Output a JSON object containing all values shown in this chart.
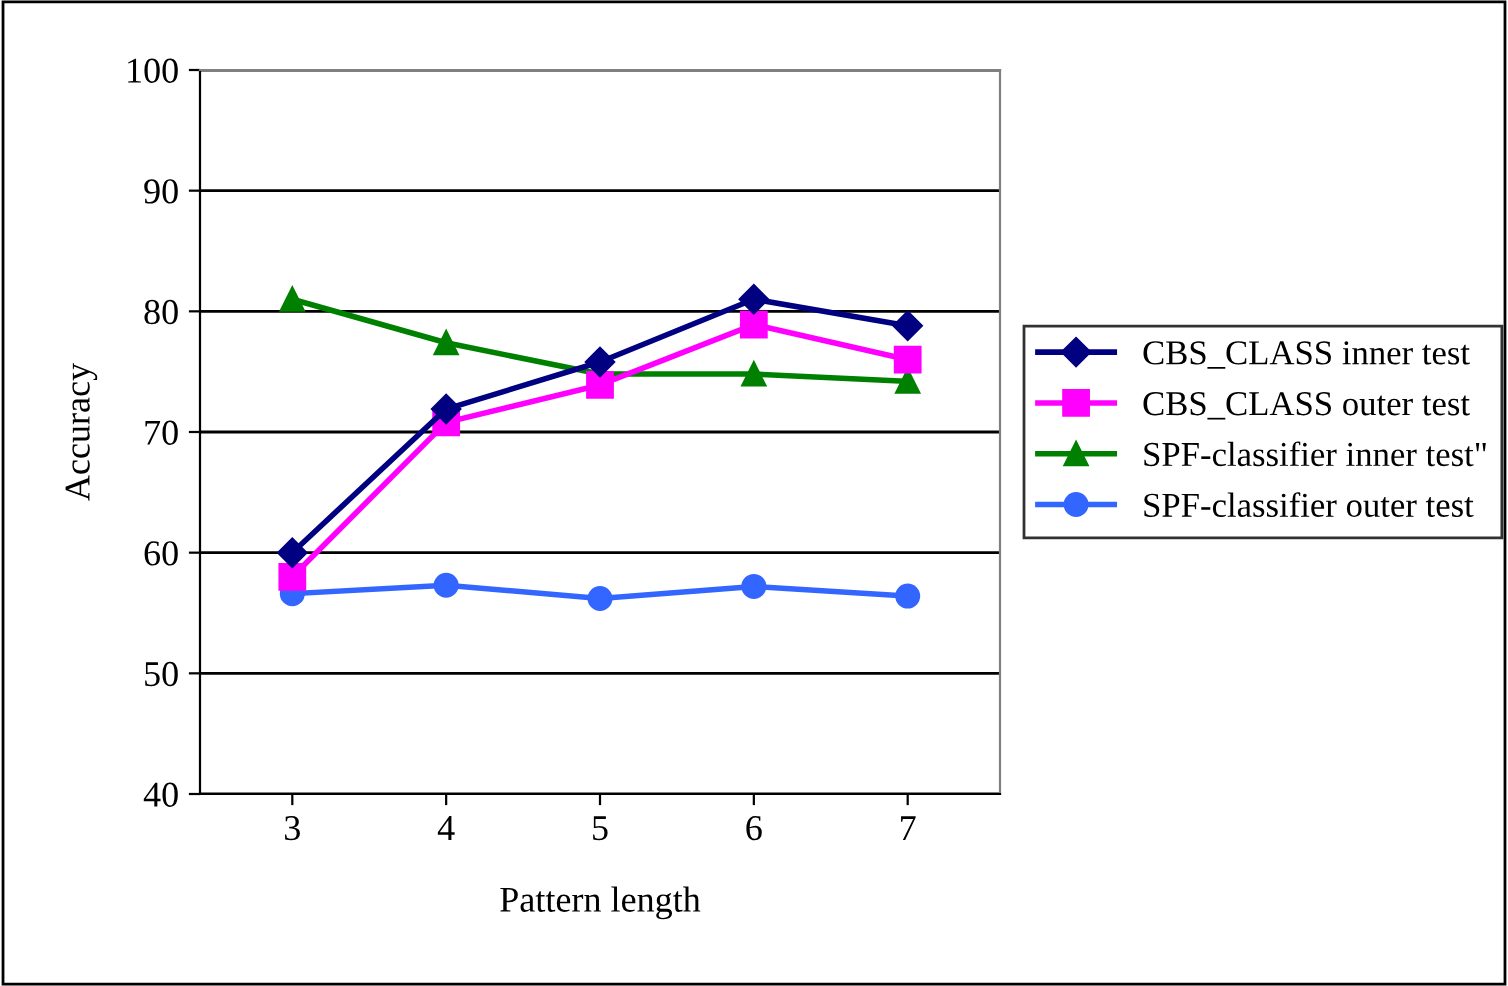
{
  "chart_data": {
    "type": "line",
    "xlabel": "Pattern length",
    "ylabel": "Accuracy",
    "categories": [
      "3",
      "4",
      "5",
      "6",
      "7"
    ],
    "series": [
      {
        "name": "CBS_CLASS inner test",
        "color": "#000080",
        "marker": "diamond",
        "values": [
          60.0,
          71.9,
          75.8,
          81.0,
          78.8
        ]
      },
      {
        "name": "CBS_CLASS outer test",
        "color": "#ff00ff",
        "marker": "square",
        "values": [
          58.0,
          70.8,
          73.9,
          78.9,
          76.0
        ]
      },
      {
        "name": "SPF-classifier inner test\"",
        "color": "#008000",
        "marker": "triangle",
        "values": [
          81.0,
          77.4,
          74.8,
          74.8,
          74.2
        ]
      },
      {
        "name": "SPF-classifier outer test",
        "color": "#3366ff",
        "marker": "circle",
        "values": [
          56.6,
          57.3,
          56.2,
          57.2,
          56.4
        ]
      }
    ],
    "ylim": [
      40,
      100
    ],
    "yticks": [
      40,
      50,
      60,
      70,
      80,
      90,
      100
    ],
    "grid": "y",
    "legend": "right",
    "line_style": "solid"
  }
}
